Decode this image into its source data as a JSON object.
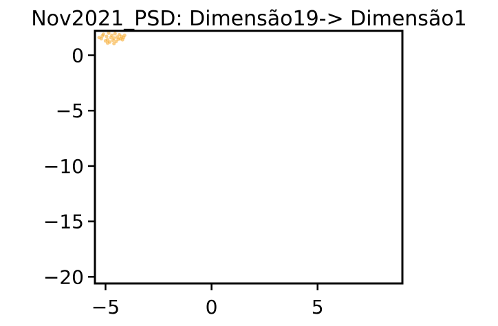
{
  "chart_data": {
    "type": "scatter",
    "title": "Nov2021_PSD: Dimensão19-> Dimensão1",
    "xlabel": "",
    "ylabel": "",
    "xlim": [
      -5.5,
      9.0
    ],
    "ylim": [
      -20.6,
      2.2
    ],
    "x_ticks": [
      {
        "value": -5,
        "label": "−5"
      },
      {
        "value": 0,
        "label": "0"
      },
      {
        "value": 5,
        "label": "5"
      }
    ],
    "y_ticks": [
      {
        "value": 0,
        "label": "0"
      },
      {
        "value": -5,
        "label": "−5"
      },
      {
        "value": -10,
        "label": "−10"
      },
      {
        "value": -15,
        "label": "−15"
      },
      {
        "value": -20,
        "label": "−20"
      }
    ],
    "grid": false,
    "marker_color": "#f5a623",
    "series": [
      {
        "points": [
          [
            -5.3,
            1.6
          ],
          [
            -5.2,
            1.5
          ],
          [
            -5.1,
            1.9
          ],
          [
            -5.0,
            1.3
          ],
          [
            -4.95,
            1.7
          ],
          [
            -4.9,
            1.4
          ],
          [
            -4.85,
            2.0
          ],
          [
            -4.8,
            1.2
          ],
          [
            -4.75,
            1.6
          ],
          [
            -4.7,
            1.8
          ],
          [
            -4.65,
            1.35
          ],
          [
            -4.6,
            1.55
          ],
          [
            -4.55,
            1.95
          ],
          [
            -4.5,
            1.25
          ],
          [
            -4.45,
            1.65
          ],
          [
            -4.4,
            1.45
          ],
          [
            -4.35,
            1.85
          ],
          [
            -4.3,
            1.5
          ],
          [
            -4.25,
            1.7
          ],
          [
            -4.2,
            1.4
          ],
          [
            -4.15,
            1.6
          ],
          [
            -4.1,
            1.8
          ],
          [
            -4.9,
            1.1
          ],
          [
            -4.6,
            1.05
          ],
          [
            -5.15,
            1.75
          ]
        ]
      }
    ]
  }
}
